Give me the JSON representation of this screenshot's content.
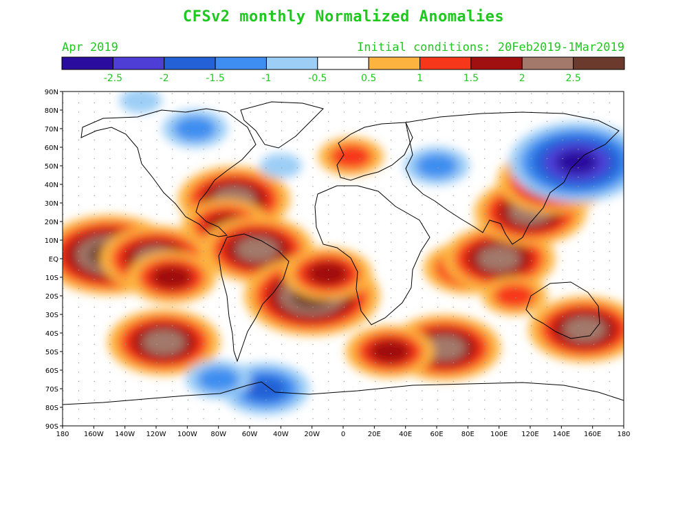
{
  "title": "CFSv2 monthly Normalized Anomalies",
  "valid_month": "Apr 2019",
  "initial_conditions": "Initial conditions: 20Feb2019-1Mar2019",
  "colors": {
    "label_green": "#1fc81f",
    "bins": [
      "#2a0c9e",
      "#4e3ed6",
      "#2461d6",
      "#3d8ef0",
      "#9ccef6",
      "#ffffff",
      "#fdb33f",
      "#f7371a",
      "#a01010",
      "#a2796b",
      "#6b3a2c"
    ]
  },
  "colorbar": {
    "labels": [
      "-2.5",
      "-2",
      "-1.5",
      "-1",
      "-0.5",
      "0.5",
      "1",
      "1.5",
      "2",
      "2.5"
    ]
  },
  "axes": {
    "lat_labels": [
      "90N",
      "80N",
      "70N",
      "60N",
      "50N",
      "40N",
      "30N",
      "20N",
      "10N",
      "EQ",
      "10S",
      "20S",
      "30S",
      "40S",
      "50S",
      "60S",
      "70S",
      "80S",
      "90S"
    ],
    "lon_labels": [
      "180",
      "160W",
      "140W",
      "120W",
      "100W",
      "80W",
      "60W",
      "40W",
      "20W",
      "0",
      "20E",
      "40E",
      "60E",
      "80E",
      "100E",
      "120E",
      "140E",
      "160E",
      "180"
    ]
  },
  "chart_data": {
    "type": "heatmap",
    "variable": "normalized anomaly",
    "x_range": [
      -180,
      180
    ],
    "y_range": [
      -90,
      90
    ],
    "anomaly_regions": [
      {
        "lon": -150,
        "lat": 2,
        "value": 2.5
      },
      {
        "lon": -120,
        "lat": 0,
        "value": 2.1
      },
      {
        "lon": -110,
        "lat": -10,
        "value": 1.8
      },
      {
        "lon": -115,
        "lat": -45,
        "value": 2.4
      },
      {
        "lon": -70,
        "lat": 32,
        "value": 2.4
      },
      {
        "lon": -75,
        "lat": 18,
        "value": 1.8
      },
      {
        "lon": -55,
        "lat": 5,
        "value": 2.1
      },
      {
        "lon": -20,
        "lat": -20,
        "value": 2.6
      },
      {
        "lon": -10,
        "lat": -8,
        "value": 1.8
      },
      {
        "lon": 5,
        "lat": 55,
        "value": 1.2
      },
      {
        "lon": 65,
        "lat": -48,
        "value": 2.1
      },
      {
        "lon": 30,
        "lat": -50,
        "value": 1.6
      },
      {
        "lon": 80,
        "lat": -5,
        "value": 1.8
      },
      {
        "lon": 100,
        "lat": 0,
        "value": 2.0
      },
      {
        "lon": 120,
        "lat": 25,
        "value": 2.3
      },
      {
        "lon": 135,
        "lat": 42,
        "value": 2.1
      },
      {
        "lon": 155,
        "lat": -38,
        "value": 2.2
      },
      {
        "lon": 110,
        "lat": -20,
        "value": 1.2
      },
      {
        "lon": 150,
        "lat": 52,
        "value": -2.6
      },
      {
        "lon": -95,
        "lat": 70,
        "value": -1.0
      },
      {
        "lon": -40,
        "lat": 50,
        "value": -0.7
      },
      {
        "lon": 60,
        "lat": 50,
        "value": -1.1
      },
      {
        "lon": -50,
        "lat": -70,
        "value": -1.6
      },
      {
        "lon": -80,
        "lat": -65,
        "value": -1.0
      },
      {
        "lon": -130,
        "lat": 85,
        "value": -0.7
      }
    ]
  }
}
